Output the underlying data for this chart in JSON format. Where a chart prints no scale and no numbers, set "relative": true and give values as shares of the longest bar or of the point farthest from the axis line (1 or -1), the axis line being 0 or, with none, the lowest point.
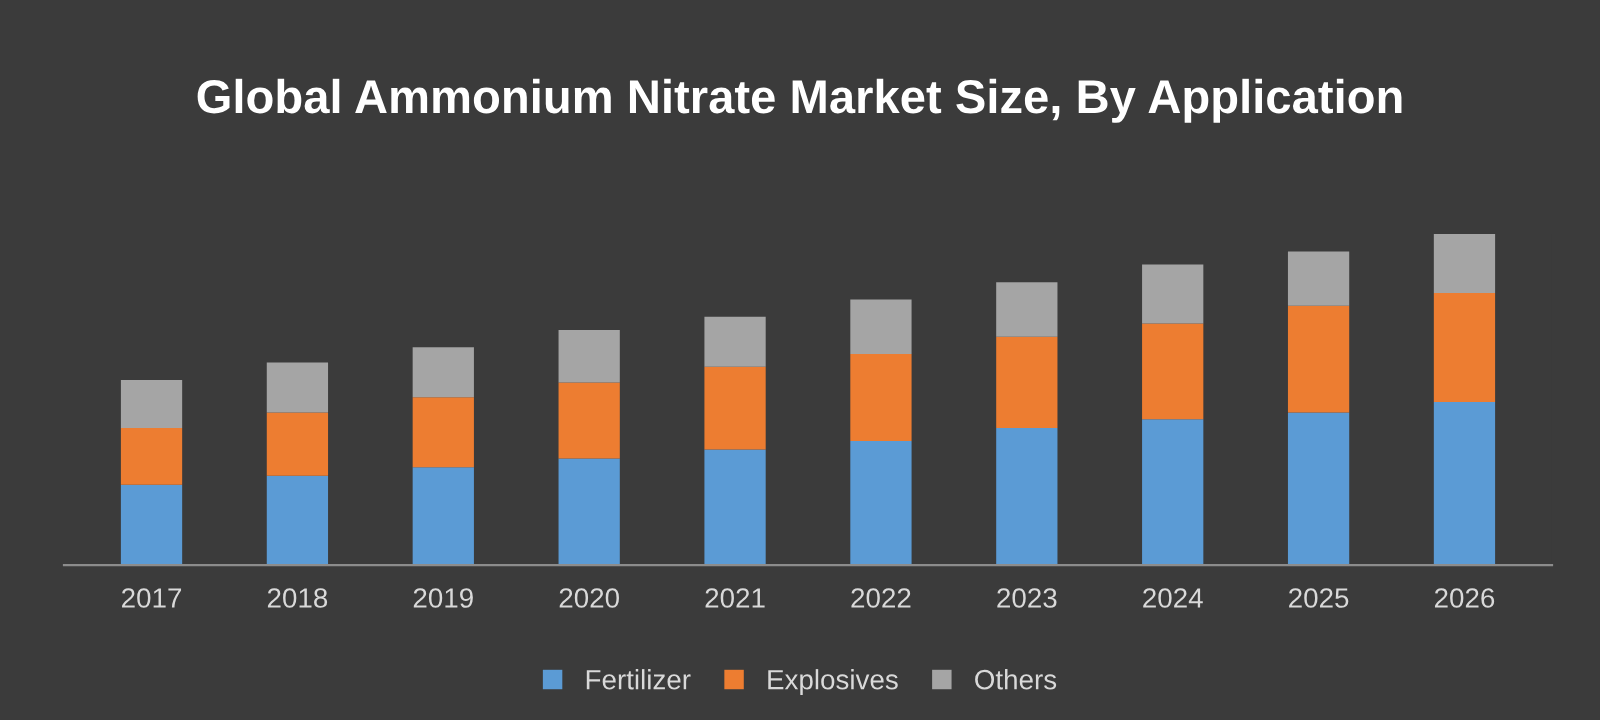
{
  "chart_data": {
    "type": "bar",
    "title": "Global Ammonium Nitrate Market Size, By Application",
    "categories": [
      "2017",
      "2018",
      "2019",
      "2020",
      "2021",
      "2022",
      "2023",
      "2024",
      "2025",
      "2026"
    ],
    "stacked": true,
    "relative": true,
    "legend": "bottom",
    "grid": false,
    "series": [
      {
        "name": "Fertilizer",
        "color": "#5b9bd5",
        "values": [
          0.243,
          0.27,
          0.296,
          0.322,
          0.349,
          0.375,
          0.414,
          0.441,
          0.461,
          0.493
        ]
      },
      {
        "name": "Explosives",
        "color": "#ed7d31",
        "values": [
          0.171,
          0.191,
          0.211,
          0.23,
          0.25,
          0.263,
          0.276,
          0.289,
          0.322,
          0.329
        ]
      },
      {
        "name": "Others",
        "color": "#a5a5a5",
        "values": [
          0.145,
          0.151,
          0.151,
          0.158,
          0.151,
          0.164,
          0.164,
          0.178,
          0.164,
          0.178
        ]
      }
    ]
  }
}
